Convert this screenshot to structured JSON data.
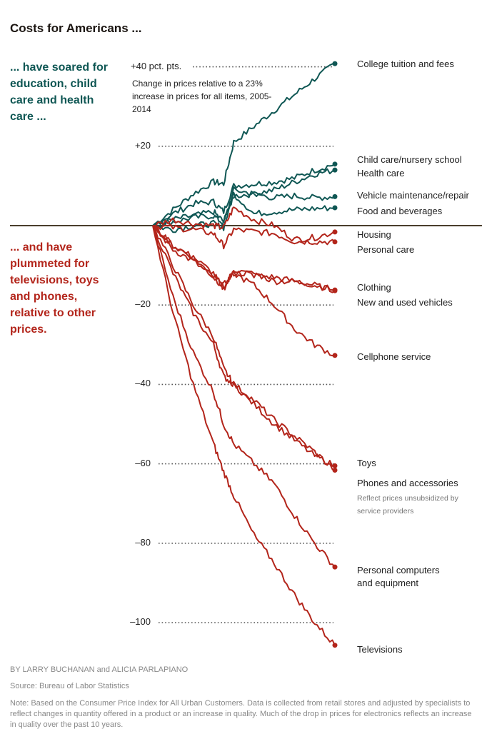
{
  "title": "Costs for Americans ...",
  "lede_up": "... have soared for education, child care and health care ...",
  "lede_down": "... and have plummeted for televisions, toys and phones, relative to other prices.",
  "colors": {
    "up": "#0f5754",
    "down": "#b3251b",
    "baseline": "#4a3e2c",
    "grid": "#555555"
  },
  "footer": {
    "byline": "BY LARRY BUCHANAN and ALICIA PARLAPIANO",
    "source": "Source: Bureau of Labor Statistics",
    "note": "Note: Based on the Consumer Price Index for All Urban Customers. Data is collected from retail stores and adjusted by specialists to reflect changes in quantity offered in a product or an increase in quality. Much of the drop in prices for electronics reflects an increase in quality over the past 10 years."
  },
  "chart_data": {
    "type": "line",
    "title": "Costs for Americans ...",
    "subtitle": "Change in prices relative to a 23% increase in prices for all items, 2005-2014",
    "xlabel": "",
    "ylabel": "pct. pts.",
    "x_range": [
      2005,
      2014
    ],
    "ylim": [
      -106,
      41
    ],
    "y_ticks": [
      {
        "value": 40,
        "label": "+40 pct. pts."
      },
      {
        "value": 20,
        "label": "+20"
      },
      {
        "value": -20,
        "label": "–20"
      },
      {
        "value": -40,
        "label": "–40"
      },
      {
        "value": -60,
        "label": "–60"
      },
      {
        "value": -80,
        "label": "–80"
      },
      {
        "value": -100,
        "label": "–100"
      }
    ],
    "grid": "dotted horizontal at ticks",
    "baseline": 0,
    "x": [
      2005,
      2006,
      2007,
      2008,
      2008.5,
      2009,
      2010,
      2011,
      2012,
      2013,
      2014
    ],
    "series": [
      {
        "name": "College tuition and fees",
        "direction": "up",
        "end_value": 40.8,
        "values": [
          0,
          4,
          8,
          11,
          10.5,
          21,
          25,
          29,
          33,
          37,
          40.8
        ]
      },
      {
        "name": "Child care/nursery school",
        "direction": "up",
        "end_value": 15.5,
        "values": [
          0,
          3,
          5.5,
          6,
          3.5,
          10,
          10.5,
          11,
          12,
          14,
          15.5
        ]
      },
      {
        "name": "Health care",
        "direction": "up",
        "end_value": 14,
        "values": [
          0,
          1.5,
          2.5,
          3.5,
          1,
          7.5,
          8,
          9,
          11,
          13,
          14
        ]
      },
      {
        "name": "Vehicle maintenance/repair",
        "direction": "up",
        "end_value": 7.3,
        "values": [
          0,
          1,
          2,
          2.5,
          0.5,
          9,
          8,
          7,
          7.5,
          7,
          7.3
        ]
      },
      {
        "name": "Food and beverages",
        "direction": "up",
        "end_value": 4.5,
        "values": [
          0,
          -1,
          0,
          0.5,
          -0.5,
          8,
          3,
          3.5,
          4,
          4.3,
          4.5
        ]
      },
      {
        "name": "Housing",
        "direction": "down",
        "end_value": -1.6,
        "values": [
          0,
          1.5,
          0.5,
          0,
          -0.5,
          4.5,
          1.5,
          0,
          -3.5,
          -3,
          -1.6
        ]
      },
      {
        "name": "Personal care",
        "direction": "down",
        "end_value": -4.1,
        "values": [
          0,
          -0.5,
          -1,
          -2,
          -5,
          -1,
          -1.5,
          -2,
          -4,
          -4,
          -4.1
        ]
      },
      {
        "name": "Clothing",
        "direction": "down",
        "end_value": -16.2,
        "values": [
          0,
          -6,
          -9,
          -13,
          -15,
          -12,
          -12,
          -14,
          -14,
          -15,
          -16.2
        ]
      },
      {
        "name": "New and used vehicles",
        "direction": "down",
        "end_value": -16.4,
        "values": [
          0,
          -5,
          -8,
          -12,
          -16,
          -11,
          -12.5,
          -13,
          -14,
          -15,
          -16.4
        ]
      },
      {
        "name": "Cellphone service",
        "direction": "down",
        "end_value": -32.7,
        "values": [
          0,
          -5,
          -8,
          -13,
          -15.5,
          -12,
          -15,
          -20,
          -26,
          -30,
          -32.7
        ]
      },
      {
        "name": "Toys",
        "direction": "down",
        "end_value": -60.5,
        "values": [
          0,
          -10,
          -20,
          -28,
          -36,
          -40,
          -45,
          -50,
          -54,
          -58,
          -60.5
        ]
      },
      {
        "name": "Phones and accessories",
        "direction": "down",
        "end_value": -61.6,
        "note": "Reflect prices unsubsidized by service providers",
        "values": [
          0,
          -12,
          -22,
          -30,
          -38,
          -40,
          -44,
          -49,
          -53,
          -57,
          -61.6
        ]
      },
      {
        "name": "Personal computers and equipment",
        "direction": "down",
        "end_value": -86,
        "values": [
          0,
          -18,
          -32,
          -42,
          -50,
          -55,
          -60,
          -65,
          -73,
          -80,
          -86
        ]
      },
      {
        "name": "Televisions",
        "direction": "down",
        "end_value": -105.7,
        "values": [
          0,
          -22,
          -40,
          -55,
          -62,
          -68,
          -78,
          -85,
          -93,
          -100,
          -105.7
        ]
      }
    ],
    "labels": [
      {
        "text": "College tuition and fees"
      },
      {
        "text": "Child care/nursery school"
      },
      {
        "text": "Health care"
      },
      {
        "text": "Vehicle maintenance/repair"
      },
      {
        "text": "Food and beverages"
      },
      {
        "text": "Housing"
      },
      {
        "text": "Personal care"
      },
      {
        "text": "Clothing"
      },
      {
        "text": "New and used vehicles"
      },
      {
        "text": "Cellphone service"
      },
      {
        "text": "Toys"
      },
      {
        "text": "Phones and accessories"
      },
      {
        "text": "Personal computers and equipment"
      },
      {
        "text": "Televisions"
      }
    ],
    "annotation_phones": "Reflect prices unsubsidized by service providers"
  }
}
